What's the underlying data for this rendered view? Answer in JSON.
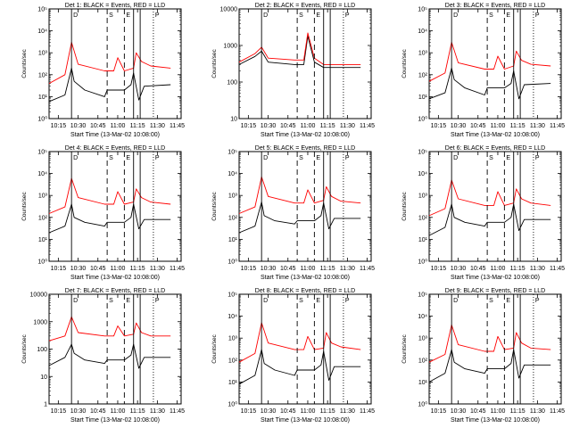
{
  "colors": {
    "events": "#000000",
    "lld": "#ff0000",
    "background": "#ffffff"
  },
  "chart_data": [
    {
      "type": "line",
      "title": "Det 1: BLACK = Events, RED = LLD",
      "xlabel": "Start Time (13-Mar-02 10:08:00)",
      "ylabel": "Counts/sec",
      "yscale": "log",
      "ylim": [
        1,
        100000
      ],
      "ytick_labels": [
        "10⁰",
        "10¹",
        "10²",
        "10³",
        "10⁴",
        "10⁵"
      ],
      "x_ticks": [
        "10:15",
        "10:30",
        "10:45",
        "11:00",
        "11:15",
        "11:30",
        "11:45"
      ],
      "flags": [
        "D",
        "S",
        "E",
        "P"
      ],
      "solid_lines": [
        "10:25",
        "11:12",
        "11:17"
      ],
      "dashed_lines": [
        "10:52",
        "11:05"
      ],
      "dotted_lines": [
        "11:27"
      ],
      "series": [
        {
          "name": "Events",
          "color": "#000000",
          "x": [
            "10:08",
            "10:20",
            "10:25",
            "10:27",
            "10:35",
            "10:50",
            "10:52",
            "11:05",
            "11:10",
            "11:12",
            "11:16",
            "11:20",
            "11:40"
          ],
          "y": [
            6,
            12,
            200,
            50,
            20,
            10,
            20,
            20,
            35,
            120,
            7,
            30,
            35
          ]
        },
        {
          "name": "LLD",
          "color": "#ff0000",
          "x": [
            "10:08",
            "10:20",
            "10:25",
            "10:30",
            "10:50",
            "10:57",
            "11:00",
            "11:05",
            "11:12",
            "11:14",
            "11:18",
            "11:25",
            "11:40"
          ],
          "y": [
            40,
            100,
            3000,
            300,
            150,
            150,
            600,
            150,
            200,
            1000,
            400,
            250,
            200
          ]
        }
      ]
    },
    {
      "type": "line",
      "title": "Det 2: BLACK = Events, RED = LLD",
      "xlabel": "Start Time (13-Mar-02 10:08:00)",
      "ylabel": "Counts/sec",
      "yscale": "log",
      "ylim": [
        10,
        10000
      ],
      "ytick_labels": [
        "10",
        "100",
        "1000",
        "10000"
      ],
      "x_ticks": [
        "10:15",
        "10:30",
        "10:45",
        "11:00",
        "11:15",
        "11:30",
        "11:45"
      ],
      "flags": [
        "D",
        "S",
        "E",
        "P"
      ],
      "solid_lines": [
        "10:25",
        "11:12",
        "11:17"
      ],
      "dashed_lines": [
        "10:52",
        "11:05"
      ],
      "dotted_lines": [
        "11:27"
      ],
      "series": [
        {
          "name": "Events",
          "color": "#000000",
          "x": [
            "10:08",
            "10:20",
            "10:25",
            "10:30",
            "10:50",
            "10:57",
            "11:00",
            "11:05",
            "11:12",
            "11:20",
            "11:40"
          ],
          "y": [
            300,
            500,
            700,
            350,
            300,
            300,
            1800,
            350,
            250,
            250,
            250
          ]
        },
        {
          "name": "LLD",
          "color": "#ff0000",
          "x": [
            "10:08",
            "10:20",
            "10:25",
            "10:30",
            "10:50",
            "10:57",
            "11:00",
            "11:05",
            "11:12",
            "11:20",
            "11:40"
          ],
          "y": [
            350,
            600,
            900,
            450,
            400,
            400,
            2200,
            450,
            300,
            300,
            300
          ]
        }
      ]
    },
    {
      "type": "line",
      "title": "Det 3: BLACK = Events, RED = LLD",
      "xlabel": "Start Time (13-Mar-02 10:08:00)",
      "ylabel": "Counts/sec",
      "yscale": "log",
      "ylim": [
        1,
        100000
      ],
      "ytick_labels": [
        "10⁰",
        "10¹",
        "10²",
        "10³",
        "10⁴",
        "10⁵"
      ],
      "x_ticks": [
        "10:15",
        "10:30",
        "10:45",
        "11:00",
        "11:15",
        "11:30",
        "11:45"
      ],
      "flags": [
        "D",
        "S",
        "E",
        "P"
      ],
      "solid_lines": [
        "10:25",
        "11:12",
        "11:17"
      ],
      "dashed_lines": [
        "10:52",
        "11:05"
      ],
      "dotted_lines": [
        "11:27"
      ],
      "series": [
        {
          "name": "Events",
          "color": "#000000",
          "x": [
            "10:08",
            "10:20",
            "10:25",
            "10:27",
            "10:35",
            "10:50",
            "10:52",
            "11:05",
            "11:10",
            "11:12",
            "11:16",
            "11:20",
            "11:40"
          ],
          "y": [
            8,
            15,
            200,
            60,
            25,
            12,
            25,
            25,
            40,
            150,
            8,
            35,
            40
          ]
        },
        {
          "name": "LLD",
          "color": "#ff0000",
          "x": [
            "10:08",
            "10:20",
            "10:25",
            "10:30",
            "10:50",
            "10:57",
            "11:00",
            "11:05",
            "11:12",
            "11:14",
            "11:18",
            "11:25",
            "11:40"
          ],
          "y": [
            50,
            120,
            3000,
            350,
            180,
            180,
            700,
            180,
            250,
            1200,
            450,
            300,
            250
          ]
        }
      ]
    },
    {
      "type": "line",
      "title": "Det 4: BLACK = Events, RED = LLD",
      "xlabel": "Start Time (13-Mar-02 10:08:00)",
      "ylabel": "Counts/sec",
      "yscale": "log",
      "ylim": [
        1,
        100000
      ],
      "ytick_labels": [
        "10⁰",
        "10¹",
        "10²",
        "10³",
        "10⁴",
        "10⁵"
      ],
      "x_ticks": [
        "10:15",
        "10:30",
        "10:45",
        "11:00",
        "11:15",
        "11:30",
        "11:45"
      ],
      "flags": [
        "D",
        "S",
        "E",
        "P"
      ],
      "solid_lines": [
        "10:25",
        "11:12",
        "11:17"
      ],
      "dashed_lines": [
        "10:52",
        "11:05"
      ],
      "dotted_lines": [
        "11:27"
      ],
      "series": [
        {
          "name": "Events",
          "color": "#000000",
          "x": [
            "10:08",
            "10:20",
            "10:25",
            "10:27",
            "10:35",
            "10:50",
            "10:52",
            "11:05",
            "11:10",
            "11:12",
            "11:16",
            "11:20",
            "11:40"
          ],
          "y": [
            20,
            40,
            400,
            100,
            60,
            40,
            60,
            60,
            100,
            400,
            30,
            80,
            80
          ]
        },
        {
          "name": "LLD",
          "color": "#ff0000",
          "x": [
            "10:08",
            "10:20",
            "10:25",
            "10:30",
            "10:50",
            "10:57",
            "11:00",
            "11:05",
            "11:12",
            "11:14",
            "11:18",
            "11:25",
            "11:40"
          ],
          "y": [
            150,
            300,
            6000,
            800,
            400,
            400,
            1500,
            400,
            500,
            2000,
            800,
            500,
            400
          ]
        }
      ]
    },
    {
      "type": "line",
      "title": "Det 5: BLACK = Events, RED = LLD",
      "xlabel": "Start Time (13-Mar-02 10:08:00)",
      "ylabel": "Counts/sec",
      "yscale": "log",
      "ylim": [
        1,
        100000
      ],
      "ytick_labels": [
        "10⁰",
        "10¹",
        "10²",
        "10³",
        "10⁴",
        "10⁵"
      ],
      "x_ticks": [
        "10:15",
        "10:30",
        "10:45",
        "11:00",
        "11:15",
        "11:30",
        "11:45"
      ],
      "flags": [
        "D",
        "S",
        "E",
        "P"
      ],
      "solid_lines": [
        "10:25",
        "11:12",
        "11:17"
      ],
      "dashed_lines": [
        "10:52",
        "11:05"
      ],
      "dotted_lines": [
        "11:27"
      ],
      "series": [
        {
          "name": "Events",
          "color": "#000000",
          "x": [
            "10:08",
            "10:20",
            "10:25",
            "10:27",
            "10:35",
            "10:50",
            "10:52",
            "11:05",
            "11:10",
            "11:12",
            "11:16",
            "11:20",
            "11:40"
          ],
          "y": [
            20,
            40,
            500,
            120,
            70,
            50,
            70,
            70,
            120,
            450,
            30,
            90,
            90
          ]
        },
        {
          "name": "LLD",
          "color": "#ff0000",
          "x": [
            "10:08",
            "10:20",
            "10:25",
            "10:30",
            "10:50",
            "10:57",
            "11:00",
            "11:05",
            "11:12",
            "11:14",
            "11:18",
            "11:25",
            "11:40"
          ],
          "y": [
            150,
            300,
            7000,
            900,
            450,
            450,
            1800,
            450,
            600,
            2500,
            900,
            550,
            450
          ]
        }
      ]
    },
    {
      "type": "line",
      "title": "Det 6: BLACK = Events, RED = LLD",
      "xlabel": "Start Time (13-Mar-02 10:08:00)",
      "ylabel": "Counts/sec",
      "yscale": "log",
      "ylim": [
        1,
        100000
      ],
      "ytick_labels": [
        "10⁰",
        "10¹",
        "10²",
        "10³",
        "10⁴",
        "10⁵"
      ],
      "x_ticks": [
        "10:15",
        "10:30",
        "10:45",
        "11:00",
        "11:15",
        "11:30",
        "11:45"
      ],
      "flags": [
        "D",
        "S",
        "E",
        "P"
      ],
      "solid_lines": [
        "10:25",
        "11:12",
        "11:17"
      ],
      "dashed_lines": [
        "10:52",
        "11:05"
      ],
      "dotted_lines": [
        "11:27"
      ],
      "series": [
        {
          "name": "Events",
          "color": "#000000",
          "x": [
            "10:08",
            "10:20",
            "10:25",
            "10:27",
            "10:35",
            "10:50",
            "10:52",
            "11:05",
            "11:10",
            "11:12",
            "11:16",
            "11:20",
            "11:40"
          ],
          "y": [
            15,
            35,
            400,
            100,
            60,
            40,
            60,
            60,
            100,
            400,
            25,
            80,
            80
          ]
        },
        {
          "name": "LLD",
          "color": "#ff0000",
          "x": [
            "10:08",
            "10:20",
            "10:25",
            "10:30",
            "10:50",
            "10:57",
            "11:00",
            "11:05",
            "11:12",
            "11:14",
            "11:18",
            "11:25",
            "11:40"
          ],
          "y": [
            120,
            250,
            5000,
            700,
            350,
            350,
            1500,
            350,
            450,
            2000,
            700,
            450,
            350
          ]
        }
      ]
    },
    {
      "type": "line",
      "title": "Det 7: BLACK = Events, RED = LLD",
      "xlabel": "Start Time (13-Mar-02 10:08:00)",
      "ylabel": "Counts/sec",
      "yscale": "log",
      "ylim": [
        1,
        10000
      ],
      "ytick_labels": [
        "1",
        "10",
        "100",
        "1000",
        "10000"
      ],
      "x_ticks": [
        "10:15",
        "10:30",
        "10:45",
        "11:00",
        "11:15",
        "11:30",
        "11:45"
      ],
      "flags": [
        "D",
        "S",
        "E",
        "P"
      ],
      "solid_lines": [
        "10:25",
        "11:12",
        "11:17"
      ],
      "dashed_lines": [
        "10:52",
        "11:05"
      ],
      "dotted_lines": [
        "11:27"
      ],
      "series": [
        {
          "name": "Events",
          "color": "#000000",
          "x": [
            "10:08",
            "10:20",
            "10:25",
            "10:27",
            "10:35",
            "10:50",
            "10:52",
            "11:05",
            "11:10",
            "11:12",
            "11:16",
            "11:20",
            "11:40"
          ],
          "y": [
            25,
            50,
            150,
            70,
            40,
            30,
            40,
            40,
            60,
            150,
            20,
            50,
            50
          ]
        },
        {
          "name": "LLD",
          "color": "#ff0000",
          "x": [
            "10:08",
            "10:20",
            "10:25",
            "10:30",
            "10:50",
            "10:57",
            "11:00",
            "11:05",
            "11:12",
            "11:14",
            "11:18",
            "11:25",
            "11:40"
          ],
          "y": [
            200,
            300,
            1500,
            400,
            300,
            300,
            700,
            300,
            350,
            900,
            400,
            300,
            300
          ]
        }
      ]
    },
    {
      "type": "line",
      "title": "Det 8: BLACK = Events, RED = LLD",
      "xlabel": "Start Time (13-Mar-02 10:08:00)",
      "ylabel": "Counts/sec",
      "yscale": "log",
      "ylim": [
        1,
        100000
      ],
      "ytick_labels": [
        "10⁰",
        "10¹",
        "10²",
        "10³",
        "10⁴",
        "10⁵"
      ],
      "x_ticks": [
        "10:15",
        "10:30",
        "10:45",
        "11:00",
        "11:15",
        "11:30",
        "11:45"
      ],
      "flags": [
        "D",
        "S",
        "E",
        "P"
      ],
      "solid_lines": [
        "10:25",
        "11:12",
        "11:17"
      ],
      "dashed_lines": [
        "10:52",
        "11:05"
      ],
      "dotted_lines": [
        "11:27"
      ],
      "series": [
        {
          "name": "Events",
          "color": "#000000",
          "x": [
            "10:08",
            "10:20",
            "10:25",
            "10:27",
            "10:35",
            "10:50",
            "10:52",
            "11:05",
            "11:10",
            "11:12",
            "11:16",
            "11:20",
            "11:40"
          ],
          "y": [
            8,
            20,
            300,
            70,
            35,
            20,
            35,
            35,
            60,
            250,
            12,
            50,
            50
          ]
        },
        {
          "name": "LLD",
          "color": "#ff0000",
          "x": [
            "10:08",
            "10:20",
            "10:25",
            "10:30",
            "10:50",
            "10:57",
            "11:00",
            "11:05",
            "11:12",
            "11:14",
            "11:18",
            "11:25",
            "11:40"
          ],
          "y": [
            80,
            200,
            5000,
            600,
            300,
            300,
            1200,
            300,
            350,
            1800,
            600,
            400,
            300
          ]
        }
      ]
    },
    {
      "type": "line",
      "title": "Det 9: BLACK = Events, RED = LLD",
      "xlabel": "Start Time (13-Mar-02 10:08:00)",
      "ylabel": "Counts/sec",
      "yscale": "log",
      "ylim": [
        1,
        100000
      ],
      "ytick_labels": [
        "10⁰",
        "10¹",
        "10²",
        "10³",
        "10⁴",
        "10⁵"
      ],
      "x_ticks": [
        "10:15",
        "10:30",
        "10:45",
        "11:00",
        "11:15",
        "11:30",
        "11:45"
      ],
      "flags": [
        "D",
        "S",
        "E",
        "P"
      ],
      "solid_lines": [
        "10:25",
        "11:12",
        "11:17"
      ],
      "dashed_lines": [
        "10:52",
        "11:05"
      ],
      "dotted_lines": [
        "11:27"
      ],
      "series": [
        {
          "name": "Events",
          "color": "#000000",
          "x": [
            "10:08",
            "10:20",
            "10:25",
            "10:27",
            "10:35",
            "10:50",
            "10:52",
            "11:05",
            "11:10",
            "11:12",
            "11:16",
            "11:20",
            "11:40"
          ],
          "y": [
            10,
            25,
            300,
            80,
            40,
            25,
            40,
            40,
            70,
            300,
            15,
            60,
            60
          ]
        },
        {
          "name": "LLD",
          "color": "#ff0000",
          "x": [
            "10:08",
            "10:20",
            "10:25",
            "10:30",
            "10:50",
            "10:57",
            "11:00",
            "11:05",
            "11:12",
            "11:14",
            "11:18",
            "11:25",
            "11:40"
          ],
          "y": [
            80,
            180,
            4000,
            500,
            250,
            250,
            1200,
            300,
            350,
            1800,
            600,
            350,
            300
          ]
        }
      ]
    }
  ]
}
